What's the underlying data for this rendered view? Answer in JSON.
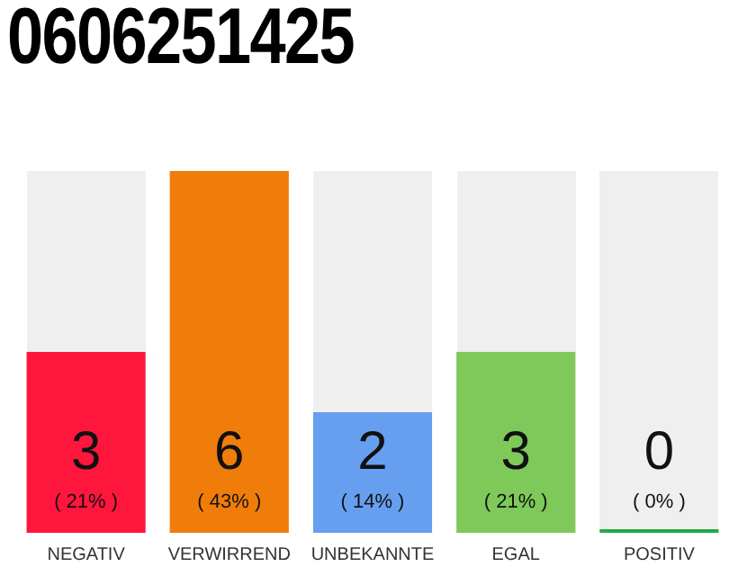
{
  "chart_data": {
    "type": "bar",
    "title": "0606251425",
    "categories": [
      "NEGATIV",
      "VERWIRREND",
      "UNBEKANNTE",
      "EGAL",
      "POSITIV"
    ],
    "values": [
      3,
      6,
      2,
      3,
      0
    ],
    "colors": [
      "#ff163c",
      "#f07d0a",
      "#679ff0",
      "#7ec95a",
      "#22aa44"
    ],
    "data_labels": true,
    "annotations": [
      "( 21% )",
      "( 43% )",
      "( 14% )",
      "( 21% )",
      "( 0% )"
    ],
    "grid": false,
    "legend": false
  }
}
